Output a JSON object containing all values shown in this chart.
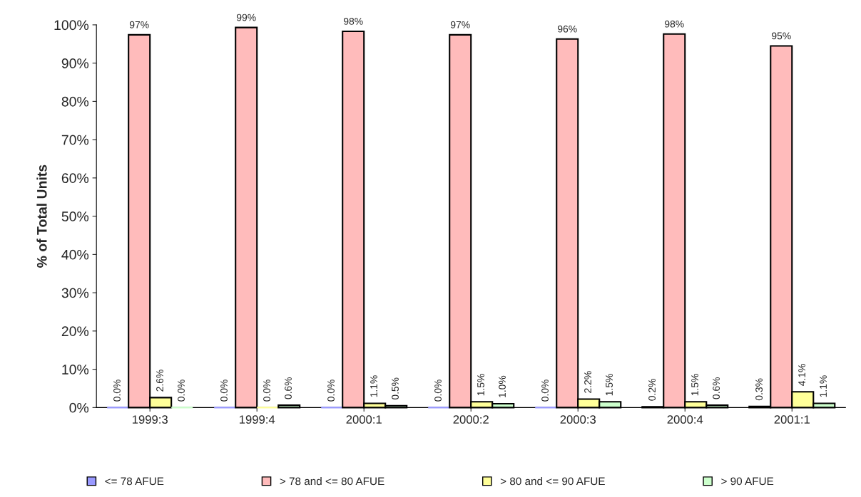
{
  "chart_data": {
    "type": "bar",
    "ylabel": "% of Total Units",
    "categories": [
      "1999:3",
      "1999:4",
      "2000:1",
      "2000:2",
      "2000:3",
      "2000:4",
      "2001:1"
    ],
    "series": [
      {
        "name": "<= 78 AFUE",
        "color": "#9999ff",
        "values": [
          0.0,
          0.0,
          0.0,
          0.0,
          0.0,
          0.2,
          0.3
        ],
        "value_labels": [
          "0.0%",
          "0.0%",
          "0.0%",
          "0.0%",
          "0.0%",
          "0.2%",
          "0.3%"
        ]
      },
      {
        "name": "> 78 and <= 80 AFUE",
        "color": "#ffbbbb",
        "values": [
          97.4,
          99.3,
          98.3,
          97.4,
          96.3,
          97.6,
          94.5
        ],
        "value_labels": [
          "97%",
          "99%",
          "98%",
          "97%",
          "96%",
          "98%",
          "95%"
        ]
      },
      {
        "name": "> 80 and <= 90 AFUE",
        "color": "#ffff99",
        "values": [
          2.6,
          0.0,
          1.1,
          1.5,
          2.2,
          1.5,
          4.1
        ],
        "value_labels": [
          "2.6%",
          "0.0%",
          "1.1%",
          "1.5%",
          "2.2%",
          "1.5%",
          "4.1%"
        ]
      },
      {
        "name": "> 90 AFUE",
        "color": "#ccffcc",
        "values": [
          0.0,
          0.6,
          0.5,
          1.0,
          1.5,
          0.6,
          1.1
        ],
        "value_labels": [
          "0.0%",
          "0.6%",
          "0.5%",
          "1.0%",
          "1.5%",
          "0.6%",
          "1.1%"
        ]
      }
    ],
    "ylim": [
      0,
      100
    ],
    "yticks": [
      {
        "value": 0,
        "label": "0%"
      },
      {
        "value": 10,
        "label": "10%"
      },
      {
        "value": 20,
        "label": "20%"
      },
      {
        "value": 30,
        "label": "30%"
      },
      {
        "value": 40,
        "label": "40%"
      },
      {
        "value": 50,
        "label": "50%"
      },
      {
        "value": 60,
        "label": "60%"
      },
      {
        "value": 70,
        "label": "70%"
      },
      {
        "value": 80,
        "label": "80%"
      },
      {
        "value": 90,
        "label": "90%"
      },
      {
        "value": 100,
        "label": "100%"
      }
    ],
    "grid": false,
    "legend": "bottom"
  }
}
